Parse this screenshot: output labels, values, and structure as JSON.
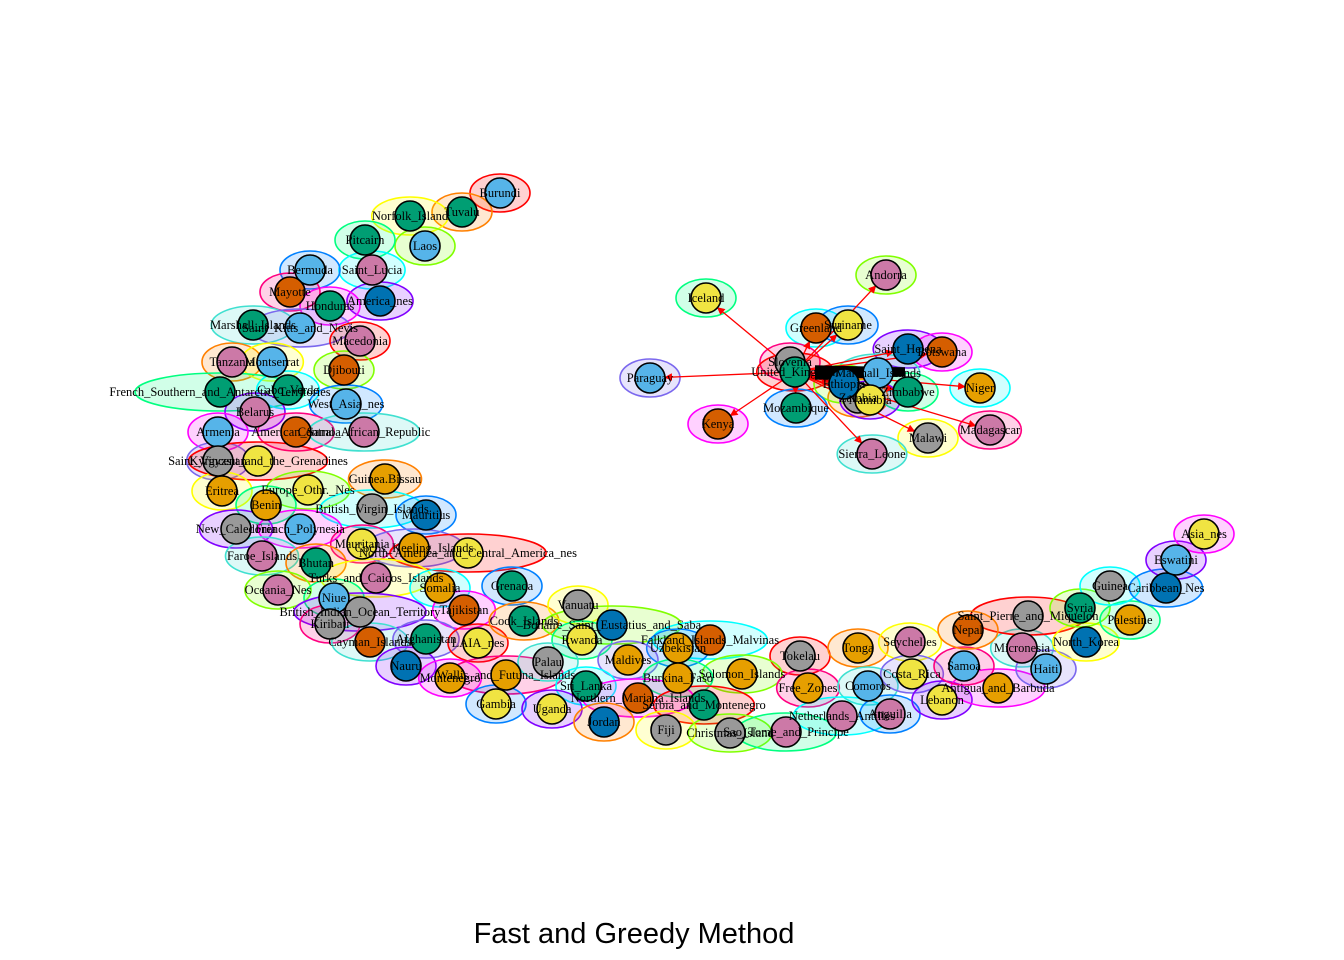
{
  "title": "Fast and Greedy Method",
  "colors": {
    "fills": [
      "#e69f00",
      "#56b4e9",
      "#009e73",
      "#f0e442",
      "#0072b2",
      "#d55e00",
      "#cc79a7",
      "#999999"
    ],
    "hulls": [
      "#ff0000",
      "#ff8000",
      "#ffff00",
      "#80ff00",
      "#00ff80",
      "#00ffff",
      "#0080ff",
      "#8000ff",
      "#ff00ff",
      "#ff0080",
      "#40e0d0",
      "#7b68ee"
    ],
    "edge": "#ff0000"
  },
  "isolates": [
    {
      "name": "Burundi",
      "fill": 1
    },
    {
      "name": "Tuvalu",
      "fill": 2
    },
    {
      "name": "Norfolk_Island",
      "fill": 2
    },
    {
      "name": "Laos",
      "fill": 1
    },
    {
      "name": "Pitcairn",
      "fill": 2
    },
    {
      "name": "Saint_Lucia",
      "fill": 6
    },
    {
      "name": "Bermuda",
      "fill": 1
    },
    {
      "name": "America_nes",
      "fill": 4
    },
    {
      "name": "Honduras",
      "fill": 2
    },
    {
      "name": "Mayotte",
      "fill": 5
    },
    {
      "name": "Marshall_Islands",
      "fill": 2
    },
    {
      "name": "Saint_Kitts_and_Nevis",
      "fill": 1
    },
    {
      "name": "Macedonia",
      "fill": 6
    },
    {
      "name": "Tanzania",
      "fill": 6
    },
    {
      "name": "Montserrat",
      "fill": 1
    },
    {
      "name": "Djibouti",
      "fill": 5
    },
    {
      "name": "French_Southern_and_Antarctic_Territories",
      "fill": 2
    },
    {
      "name": "Cabo_Verde",
      "fill": 2
    },
    {
      "name": "West_Asia_nes",
      "fill": 1
    },
    {
      "name": "Belarus",
      "fill": 6
    },
    {
      "name": "Armenia",
      "fill": 1
    },
    {
      "name": "American_Samoa",
      "fill": 5
    },
    {
      "name": "Central_African_Republic",
      "fill": 6
    },
    {
      "name": "Kyrgyzstan",
      "fill": 7
    },
    {
      "name": "Saint_Vincent_and_the_Grenadines",
      "fill": 3
    },
    {
      "name": "Guinea.Bissau",
      "fill": 0
    },
    {
      "name": "Eritrea",
      "fill": 0
    },
    {
      "name": "Europe_Othr._Nes",
      "fill": 3
    },
    {
      "name": "Benin",
      "fill": 0
    },
    {
      "name": "British_Virgin_Islands",
      "fill": 7
    },
    {
      "name": "Mauritius",
      "fill": 4
    },
    {
      "name": "New_Caledonia",
      "fill": 7
    },
    {
      "name": "French_Polynesia",
      "fill": 1
    },
    {
      "name": "Mauritania",
      "fill": 3
    },
    {
      "name": "Faroe_Islands",
      "fill": 6
    },
    {
      "name": "Cocos_Keeling_Islands",
      "fill": 0
    },
    {
      "name": "North_America_and_Central_America_nes",
      "fill": 3
    },
    {
      "name": "Bhutan",
      "fill": 2
    },
    {
      "name": "Turks_and_Caicos_Islands",
      "fill": 6
    },
    {
      "name": "Oceania_Nes",
      "fill": 6
    },
    {
      "name": "Niue",
      "fill": 1
    },
    {
      "name": "Somalia",
      "fill": 0
    },
    {
      "name": "Grenada",
      "fill": 2
    },
    {
      "name": "British_Indian_Ocean_Territory",
      "fill": 7
    },
    {
      "name": "Tajikistan",
      "fill": 5
    },
    {
      "name": "Kiribati",
      "fill": 7
    },
    {
      "name": "Cayman_Islands",
      "fill": 5
    },
    {
      "name": "Afghanistan",
      "fill": 2
    },
    {
      "name": "LAIA_nes",
      "fill": 3
    },
    {
      "name": "Cook_Islands",
      "fill": 2
    },
    {
      "name": "Vanuatu",
      "fill": 7
    },
    {
      "name": "Bonaire_Saint_Eustatius_and_Saba",
      "fill": 4
    },
    {
      "name": "Rwanda",
      "fill": 3
    },
    {
      "name": "Falkland_Islands_Malvinas",
      "fill": 5
    },
    {
      "name": "Uzbekistan",
      "fill": 0
    },
    {
      "name": "Nauru",
      "fill": 4
    },
    {
      "name": "Montenegro",
      "fill": 0
    },
    {
      "name": "Wallis_and_Futuna_Islands",
      "fill": 0
    },
    {
      "name": "Palau",
      "fill": 7
    },
    {
      "name": "Maldives",
      "fill": 0
    },
    {
      "name": "Tokelau",
      "fill": 7
    },
    {
      "name": "Tonga",
      "fill": 0
    },
    {
      "name": "Seychelles",
      "fill": 6
    },
    {
      "name": "Solomon_Islands",
      "fill": 0
    },
    {
      "name": "Burkina_Faso",
      "fill": 0
    },
    {
      "name": "Sri_Lanka",
      "fill": 2
    },
    {
      "name": "Gambia",
      "fill": 3
    },
    {
      "name": "Uganda",
      "fill": 3
    },
    {
      "name": "Northern_Mariana_Islands",
      "fill": 5
    },
    {
      "name": "Free_Zones",
      "fill": 0
    },
    {
      "name": "Comoros",
      "fill": 1
    },
    {
      "name": "Costa_Rica",
      "fill": 3
    },
    {
      "name": "Serbia_and_Montenegro",
      "fill": 2
    },
    {
      "name": "Jordan",
      "fill": 4
    },
    {
      "name": "Fiji",
      "fill": 7
    },
    {
      "name": "Christmas_Island",
      "fill": 7
    },
    {
      "name": "Sao_Tome_and_Principe",
      "fill": 6
    },
    {
      "name": "Netherlands_Antilles",
      "fill": 6
    },
    {
      "name": "Anguilla",
      "fill": 6
    },
    {
      "name": "Lebanon",
      "fill": 3
    },
    {
      "name": "Antigua_and_Barbuda",
      "fill": 0
    },
    {
      "name": "Samoa",
      "fill": 1
    },
    {
      "name": "Micronesia",
      "fill": 6
    },
    {
      "name": "Haiti",
      "fill": 1
    },
    {
      "name": "Saint_Pierre_and_Miquelon",
      "fill": 7
    },
    {
      "name": "Nepal",
      "fill": 5
    },
    {
      "name": "North_Korea",
      "fill": 4
    },
    {
      "name": "Syria",
      "fill": 2
    },
    {
      "name": "Palestine",
      "fill": 0
    },
    {
      "name": "Guinea",
      "fill": 7
    },
    {
      "name": "Caribbean_Nes",
      "fill": 4
    },
    {
      "name": "Eswatini",
      "fill": 1
    },
    {
      "name": "Asia_nes",
      "fill": 3
    }
  ],
  "cluster": {
    "hub": "United_Kingdom",
    "nodes": [
      {
        "name": "Andorra",
        "fill": 6
      },
      {
        "name": "Iceland",
        "fill": 3
      },
      {
        "name": "Greenland",
        "fill": 5
      },
      {
        "name": "Suriname",
        "fill": 3
      },
      {
        "name": "Saint_Helena",
        "fill": 4
      },
      {
        "name": "Botswana",
        "fill": 5
      },
      {
        "name": "Slovenia",
        "fill": 7
      },
      {
        "name": "Marshall_Islands",
        "fill": 1
      },
      {
        "name": "Paraguay",
        "fill": 1
      },
      {
        "name": "United_Kingdom",
        "fill": 2
      },
      {
        "name": "Zambia",
        "fill": 7
      },
      {
        "name": "Malawi",
        "fill": 7
      },
      {
        "name": "Ethiopia",
        "fill": 4
      },
      {
        "name": "Zimbabwe",
        "fill": 2
      },
      {
        "name": "Niger",
        "fill": 0
      },
      {
        "name": "Mozambique",
        "fill": 2
      },
      {
        "name": "Namibia",
        "fill": 3
      },
      {
        "name": "Kenya",
        "fill": 5
      },
      {
        "name": "Madagascar",
        "fill": 6
      },
      {
        "name": "Sierra_Leone",
        "fill": 6
      }
    ]
  }
}
